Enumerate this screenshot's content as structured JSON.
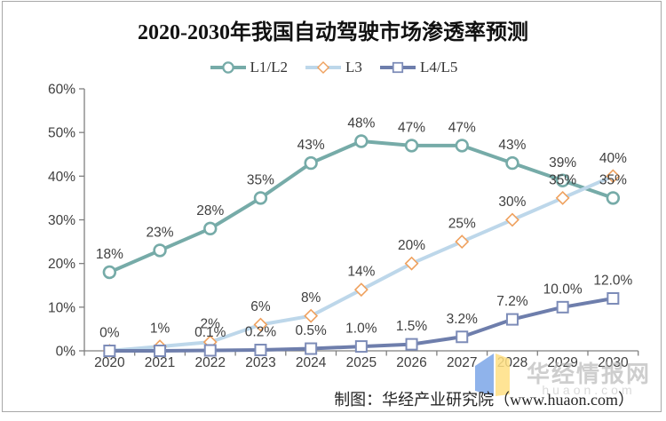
{
  "header": {
    "title": "2020-2030年我国自动驾驶市场渗透率预测"
  },
  "chart_data": {
    "type": "line",
    "title": "2020-2030年我国自动驾驶市场渗透率预测",
    "categories": [
      "2020",
      "2021",
      "2022",
      "2023",
      "2024",
      "2025",
      "2026",
      "2027",
      "2028",
      "2029",
      "2030"
    ],
    "series": [
      {
        "name": "L1/L2",
        "color": "#76ABA8",
        "marker": "circle",
        "marker_stroke": "#76ABA8",
        "values": [
          18,
          23,
          28,
          35,
          43,
          48,
          47,
          47,
          43,
          39,
          35
        ],
        "labels": [
          "18%",
          "23%",
          "28%",
          "35%",
          "43%",
          "48%",
          "47%",
          "47%",
          "43%",
          "39%",
          "35%"
        ]
      },
      {
        "name": "L3",
        "color": "#BDD7EA",
        "marker": "diamond",
        "marker_stroke": "#EFA15E",
        "values": [
          0,
          1,
          2,
          6,
          8,
          14,
          20,
          25,
          30,
          35,
          40
        ],
        "labels": [
          "0%",
          "1%",
          "2%",
          "6%",
          "8%",
          "14%",
          "20%",
          "25%",
          "30%",
          "35%",
          "40%"
        ]
      },
      {
        "name": "L4/L5",
        "color": "#6E7EAC",
        "marker": "square",
        "marker_stroke": "#7D8CB8",
        "values": [
          0,
          0,
          0.1,
          0.2,
          0.5,
          1.0,
          1.5,
          3.2,
          7.2,
          10.0,
          12.0
        ],
        "labels": [
          "",
          "",
          "0.1%",
          "0.2%",
          "0.5%",
          "1.0%",
          "1.5%",
          "3.2%",
          "7.2%",
          "10.0%",
          "12.0%"
        ]
      }
    ],
    "xlabel": "",
    "ylabel": "",
    "ylim": [
      0,
      60
    ],
    "y_tick_step": 10,
    "y_tick_labels": [
      "0%",
      "10%",
      "20%",
      "30%",
      "40%",
      "50%",
      "60%"
    ],
    "grid": false,
    "legend_position": "top",
    "axis_color": "#7F7F7F",
    "label_color": "#3F3F3F"
  },
  "watermark": {
    "brand": "华经情报网",
    "url": "huaon.com",
    "logo_blue": "#7CA6E8",
    "logo_yellow": "#FFE083"
  },
  "footer": {
    "caption": "制图：华经产业研究院（www.huaon.com）"
  }
}
